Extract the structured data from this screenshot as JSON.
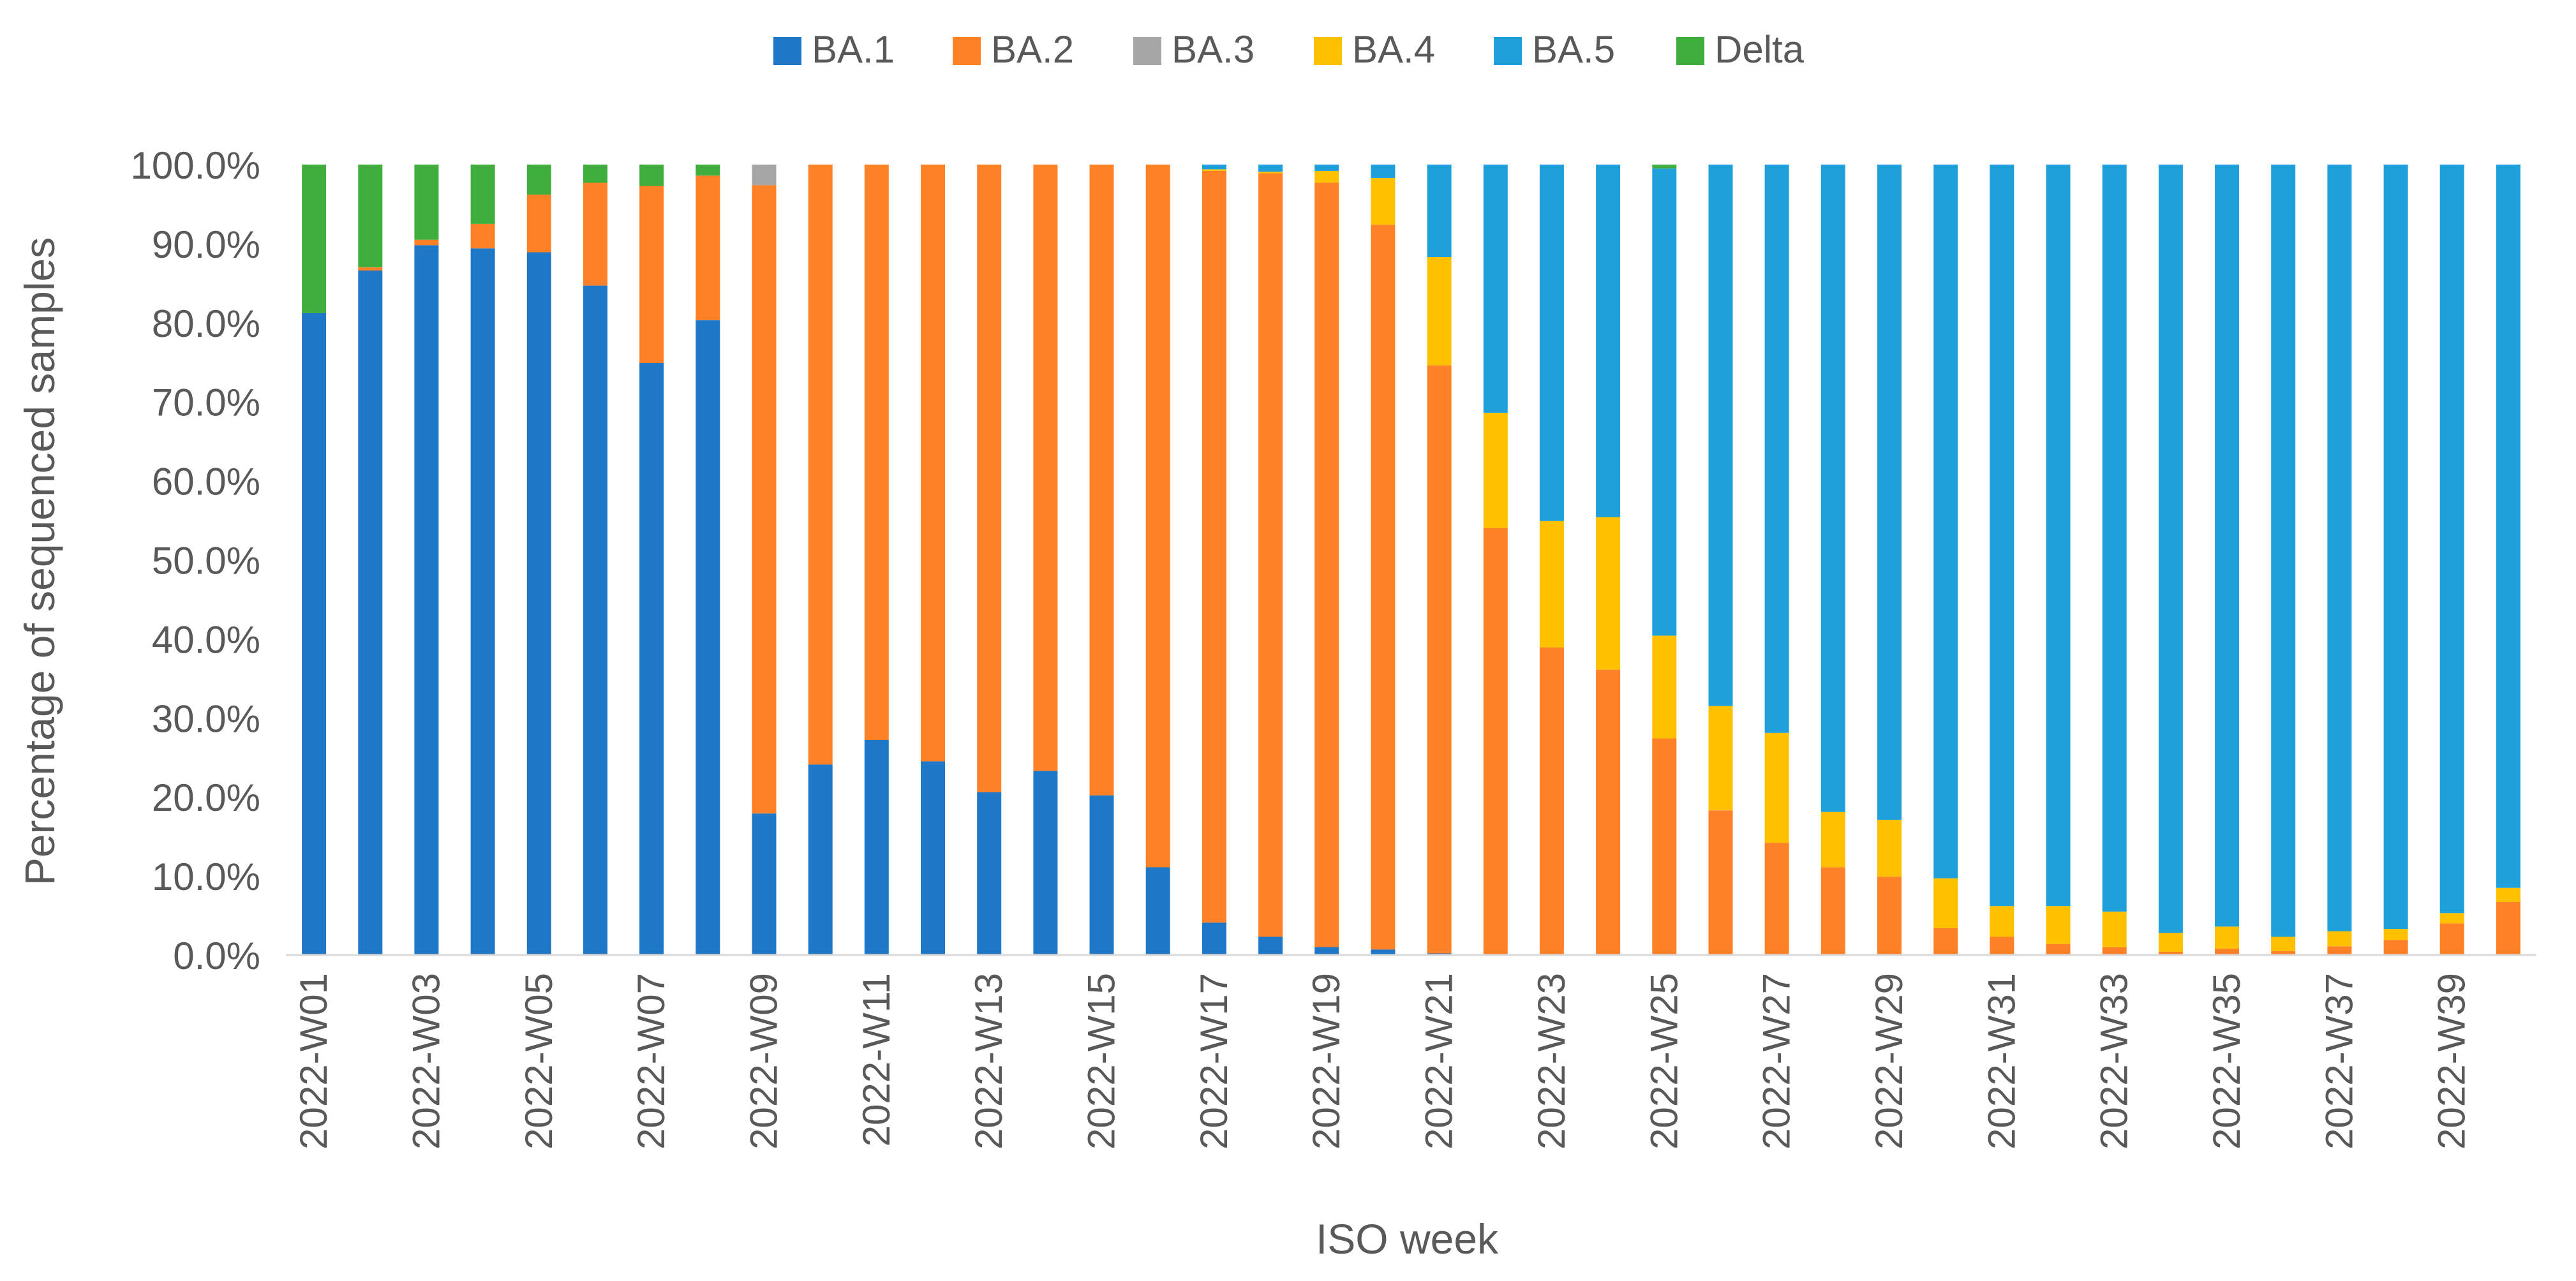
{
  "chart_data": {
    "type": "bar",
    "stacked": true,
    "title": "",
    "xlabel": "ISO week",
    "ylabel": "Percentage of sequenced samples",
    "ylim": [
      0,
      100
    ],
    "yticks": [
      "0.0%",
      "10.0%",
      "20.0%",
      "30.0%",
      "40.0%",
      "50.0%",
      "60.0%",
      "70.0%",
      "80.0%",
      "90.0%",
      "100.0%"
    ],
    "grid": false,
    "legend_position": "top",
    "categories": [
      "2022-W01",
      "2022-W02",
      "2022-W03",
      "2022-W04",
      "2022-W05",
      "2022-W06",
      "2022-W07",
      "2022-W08",
      "2022-W09",
      "2022-W10",
      "2022-W11",
      "2022-W12",
      "2022-W13",
      "2022-W14",
      "2022-W15",
      "2022-W16",
      "2022-W17",
      "2022-W18",
      "2022-W19",
      "2022-W20",
      "2022-W21",
      "2022-W22",
      "2022-W23",
      "2022-W24",
      "2022-W25",
      "2022-W26",
      "2022-W27",
      "2022-W28",
      "2022-W29",
      "2022-W30",
      "2022-W31",
      "2022-W32",
      "2022-W33",
      "2022-W34",
      "2022-W35",
      "2022-W36",
      "2022-W37",
      "2022-W38",
      "2022-W39",
      "2022-W40"
    ],
    "x_tick_labels": [
      "2022-W01",
      "",
      "2022-W03",
      "",
      "2022-W05",
      "",
      "2022-W07",
      "",
      "2022-W09",
      "",
      "2022-W11",
      "",
      "2022-W13",
      "",
      "2022-W15",
      "",
      "2022-W17",
      "",
      "2022-W19",
      "",
      "2022-W21",
      "",
      "2022-W23",
      "",
      "2022-W25",
      "",
      "2022-W27",
      "",
      "2022-W29",
      "",
      "2022-W31",
      "",
      "2022-W33",
      "",
      "2022-W35",
      "",
      "2022-W37",
      "",
      "2022-W39",
      ""
    ],
    "series": [
      {
        "name": "BA.1",
        "color": "#1f77c8",
        "values": [
          81.2,
          86.6,
          89.8,
          89.4,
          88.9,
          84.7,
          74.9,
          80.3,
          17.9,
          24.1,
          27.2,
          24.5,
          20.6,
          23.3,
          20.2,
          11.1,
          4.1,
          2.3,
          1.0,
          0.7,
          0.2,
          0.1,
          0,
          0,
          0,
          0,
          0,
          0,
          0,
          0,
          0,
          0,
          0,
          0,
          0,
          0,
          0,
          0,
          0,
          0
        ]
      },
      {
        "name": "BA.2",
        "color": "#fe8128",
        "values": [
          0,
          0.4,
          0.7,
          3.1,
          7.3,
          13.0,
          22.4,
          18.3,
          79.5,
          75.9,
          72.8,
          75.5,
          79.4,
          76.7,
          79.8,
          88.9,
          95.1,
          96.6,
          96.7,
          91.7,
          74.4,
          53.9,
          38.9,
          36.1,
          27.4,
          18.3,
          14.2,
          11.1,
          9.9,
          3.4,
          2.3,
          1.4,
          1.0,
          0.4,
          0.8,
          0.5,
          1.1,
          1.9,
          4.0,
          6.7
        ]
      },
      {
        "name": "BA.3",
        "color": "#a6a6a6",
        "values": [
          0,
          0,
          0,
          0,
          0,
          0,
          0,
          0,
          2.6,
          0,
          0,
          0,
          0,
          0,
          0,
          0,
          0,
          0,
          0,
          0,
          0,
          0,
          0,
          0,
          0,
          0,
          0,
          0,
          0,
          0,
          0,
          0,
          0,
          0,
          0,
          0,
          0,
          0,
          0,
          0
        ]
      },
      {
        "name": "BA.4",
        "color": "#ffc000",
        "values": [
          0,
          0,
          0,
          0,
          0,
          0,
          0,
          0,
          0,
          0,
          0,
          0,
          0,
          0,
          0,
          0,
          0.2,
          0.2,
          1.5,
          5.9,
          13.7,
          14.6,
          16.0,
          19.3,
          13.0,
          13.2,
          13.9,
          7.0,
          7.2,
          6.3,
          3.9,
          4.8,
          4.5,
          2.4,
          2.8,
          1.8,
          1.9,
          1.4,
          1.3,
          1.8
        ]
      },
      {
        "name": "BA.5",
        "color": "#1fa0db",
        "values": [
          0,
          0,
          0,
          0,
          0,
          0,
          0,
          0,
          0,
          0,
          0,
          0,
          0,
          0,
          0,
          0,
          0.6,
          0.9,
          0.8,
          1.7,
          11.7,
          31.4,
          45.1,
          44.6,
          59.1,
          68.5,
          71.9,
          81.9,
          82.9,
          90.3,
          93.8,
          93.8,
          94.5,
          97.2,
          96.4,
          97.7,
          97.0,
          96.7,
          94.7,
          91.5
        ]
      },
      {
        "name": "Delta",
        "color": "#3fae3d",
        "values": [
          18.8,
          13.0,
          9.5,
          7.5,
          3.8,
          2.3,
          2.7,
          1.4,
          0,
          0,
          0,
          0,
          0,
          0,
          0,
          0,
          0,
          0,
          0,
          0,
          0,
          0,
          0,
          0,
          0.5,
          0,
          0,
          0,
          0,
          0,
          0,
          0,
          0,
          0,
          0,
          0,
          0,
          0,
          0,
          0
        ]
      }
    ]
  }
}
